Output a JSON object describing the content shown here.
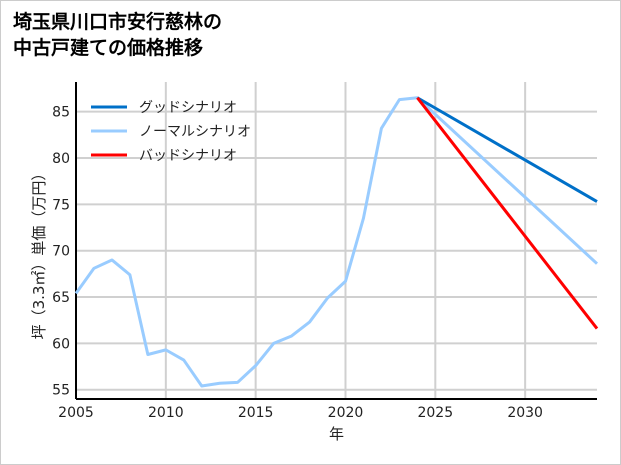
{
  "chart_data": {
    "type": "line",
    "title_lines": [
      "埼玉県川口市安行慈林の",
      "中古戸建ての価格推移"
    ],
    "xlabel": "年",
    "ylabel": "坪（3.3㎡）単価（万円）",
    "xlim": [
      2005,
      2034
    ],
    "ylim": [
      54,
      88.2
    ],
    "xticks": [
      2005,
      2010,
      2015,
      2020,
      2025,
      2030
    ],
    "yticks": [
      55,
      60,
      65,
      70,
      75,
      80,
      85
    ],
    "grid": true,
    "legend_position": "top-left",
    "series": [
      {
        "name": "グッドシナリオ",
        "color": "#0070c8",
        "x": [
          2024,
          2034
        ],
        "y": [
          86.5,
          75.3
        ]
      },
      {
        "name": "ノーマルシナリオ",
        "color": "#99ccff",
        "x": [
          2005,
          2006,
          2007,
          2008,
          2009,
          2010,
          2011,
          2012,
          2013,
          2014,
          2015,
          2016,
          2017,
          2018,
          2019,
          2020,
          2021,
          2022,
          2023,
          2024,
          2034
        ],
        "y": [
          65.4,
          68.1,
          69.0,
          67.4,
          58.8,
          59.3,
          58.2,
          55.4,
          55.7,
          55.8,
          57.6,
          60.0,
          60.8,
          62.3,
          64.9,
          66.7,
          73.5,
          83.2,
          86.3,
          86.5,
          68.6
        ]
      },
      {
        "name": "バッドシナリオ",
        "color": "#ff0000",
        "x": [
          2024,
          2034
        ],
        "y": [
          86.5,
          61.6
        ]
      }
    ]
  }
}
